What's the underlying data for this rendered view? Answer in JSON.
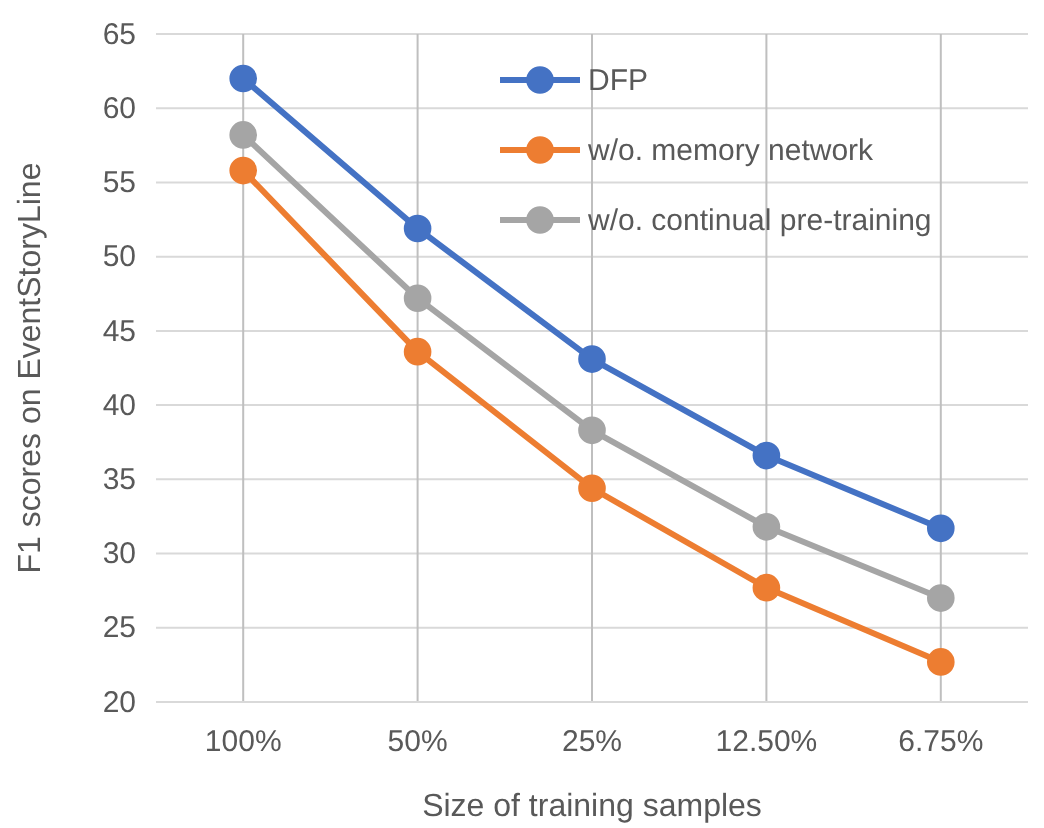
{
  "chart_data": {
    "type": "line",
    "xlabel": "Size of training samples",
    "ylabel": "F1 scores on EventStoryLine",
    "categories": [
      "100%",
      "50%",
      "25%",
      "12.50%",
      "6.75%"
    ],
    "series": [
      {
        "name": "DFP",
        "color": "#4472c4",
        "values": [
          62.0,
          51.9,
          43.1,
          36.6,
          31.7
        ]
      },
      {
        "name": "w/o. memory network",
        "color": "#ed7d31",
        "values": [
          55.8,
          43.6,
          34.4,
          27.7,
          22.7
        ]
      },
      {
        "name": "w/o. continual pre-training",
        "color": "#a5a5a5",
        "values": [
          58.2,
          47.2,
          38.3,
          31.8,
          27.0
        ]
      }
    ],
    "ylim": [
      20,
      65
    ],
    "yticks": [
      20,
      25,
      30,
      35,
      40,
      45,
      50,
      55,
      60,
      65
    ],
    "grid": true,
    "legend": "top right",
    "marker": "circle",
    "line_style": "solid"
  }
}
